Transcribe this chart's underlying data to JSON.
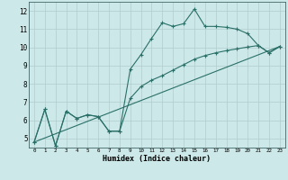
{
  "xlabel": "Humidex (Indice chaleur)",
  "bg_color": "#cce8e8",
  "grid_color": "#b0cccc",
  "line_color": "#2a7068",
  "line1_x": [
    0,
    1,
    2,
    3,
    4,
    5,
    6,
    7,
    8,
    9,
    10,
    11,
    12,
    13,
    14,
    15,
    16,
    17,
    18,
    19,
    20,
    21,
    22,
    23
  ],
  "line1_y": [
    4.8,
    6.6,
    4.6,
    6.5,
    6.1,
    6.3,
    6.2,
    5.4,
    5.4,
    8.8,
    9.6,
    10.5,
    11.35,
    11.15,
    11.3,
    12.1,
    11.15,
    11.15,
    11.1,
    11.0,
    10.75,
    10.1,
    9.7,
    10.05
  ],
  "line2_x": [
    0,
    1,
    2,
    3,
    4,
    5,
    6,
    7,
    8,
    9,
    10,
    11,
    12,
    13,
    14,
    15,
    16,
    17,
    18,
    19,
    20,
    21,
    22,
    23
  ],
  "line2_y": [
    4.8,
    6.6,
    4.6,
    6.5,
    6.1,
    6.3,
    6.2,
    5.4,
    5.4,
    7.2,
    7.85,
    8.2,
    8.45,
    8.75,
    9.05,
    9.35,
    9.55,
    9.7,
    9.82,
    9.92,
    10.02,
    10.1,
    9.7,
    10.05
  ],
  "line3_x": [
    0,
    23
  ],
  "line3_y": [
    4.8,
    10.05
  ],
  "xlim": [
    -0.5,
    23.5
  ],
  "ylim": [
    4.5,
    12.5
  ],
  "yticks": [
    5,
    6,
    7,
    8,
    9,
    10,
    11,
    12
  ],
  "xticks": [
    0,
    1,
    2,
    3,
    4,
    5,
    6,
    7,
    8,
    9,
    10,
    11,
    12,
    13,
    14,
    15,
    16,
    17,
    18,
    19,
    20,
    21,
    22,
    23
  ]
}
